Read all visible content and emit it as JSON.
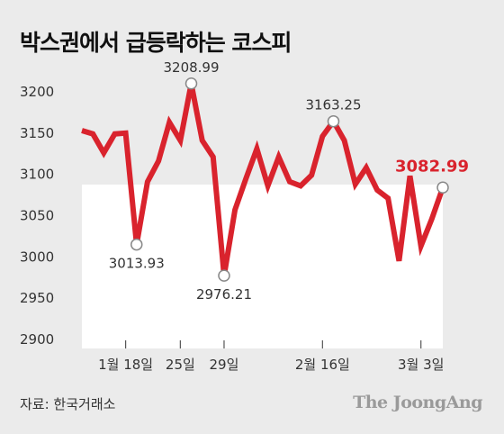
{
  "title": "박스권에서 급등락하는 코스피",
  "source": "자료: 한국거래소",
  "logo": "The JoongAng",
  "colors": {
    "background": "#ebebeb",
    "plot_area": "#ffffff",
    "line": "#d9232d",
    "highlight_label": "#d9232d"
  },
  "chart_data": {
    "type": "line",
    "title": "박스권에서 급등락하는 코스피",
    "xlabel": "",
    "ylabel": "",
    "ylim": [
      2900,
      3200
    ],
    "yticks": [
      3200,
      3150,
      3100,
      3050,
      3000,
      2950,
      2900
    ],
    "grid": false,
    "x_ticks": [
      {
        "index": 4,
        "label": "1월 18일"
      },
      {
        "index": 9,
        "label": "25일"
      },
      {
        "index": 13,
        "label": "29일"
      },
      {
        "index": 22,
        "label": "2월 16일"
      },
      {
        "index": 31,
        "label": "3월 3일"
      }
    ],
    "series": [
      {
        "values": [
          3152,
          3148,
          3125,
          3148,
          3149,
          3013.93,
          3090,
          3115,
          3162,
          3140,
          3208.99,
          3140,
          3120,
          2976.21,
          3056,
          3094,
          3130,
          3085,
          3120,
          3090,
          3085,
          3098,
          3145,
          3163.25,
          3140,
          3087,
          3107,
          3080,
          3070,
          2994,
          3097,
          3012,
          3045,
          3082.99
        ]
      }
    ],
    "annotations": [
      {
        "index": 5,
        "label": "3013.93",
        "position": "below"
      },
      {
        "index": 10,
        "label": "3208.99",
        "position": "above"
      },
      {
        "index": 13,
        "label": "2976.21",
        "position": "below"
      },
      {
        "index": 23,
        "label": "3163.25",
        "position": "above"
      },
      {
        "index": 33,
        "label": "3082.99",
        "position": "above",
        "highlight": true
      }
    ]
  }
}
